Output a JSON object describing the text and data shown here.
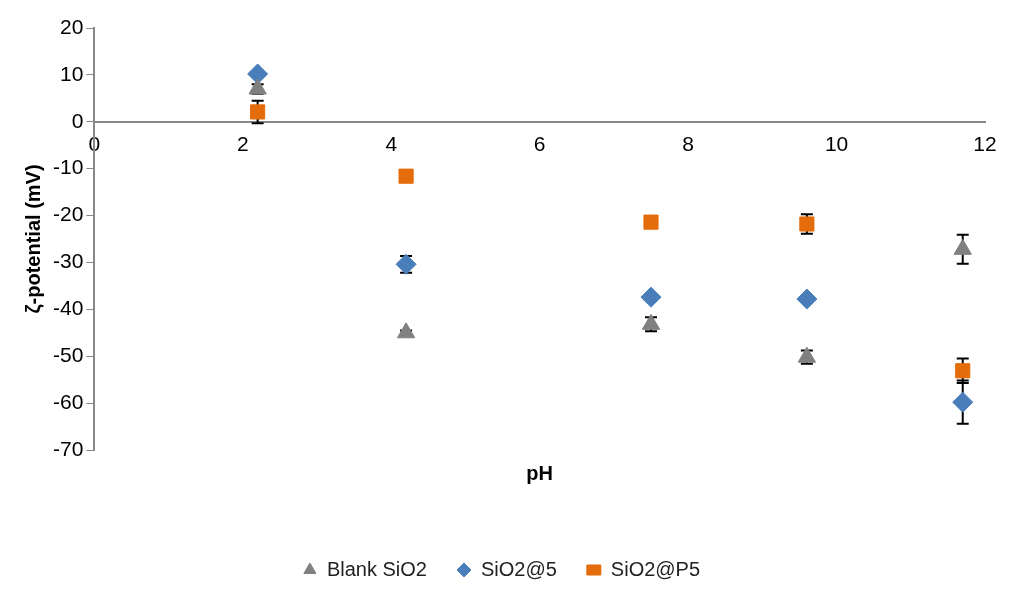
{
  "chart_data": {
    "type": "scatter",
    "xlabel": "pH",
    "ylabel": "ζ-potential (mV)",
    "x": [
      2.2,
      4.2,
      7.5,
      9.6,
      11.7
    ],
    "series": [
      {
        "name": "Blank SiO2",
        "color": "#808080",
        "marker": "triangle",
        "values": [
          7,
          -45,
          -43.2,
          -50.2,
          -27.2
        ],
        "errors": [
          1,
          0.5,
          1.5,
          1.4,
          3.1
        ]
      },
      {
        "name": "SiO2@5",
        "color": "#4a7ebb",
        "marker": "diamond",
        "values": [
          10.2,
          -30.4,
          -37.4,
          -37.8,
          -59.8
        ],
        "errors": [
          null,
          1.8,
          null,
          null,
          4.6
        ]
      },
      {
        "name": "SiO2@P5",
        "color": "#e46c0a",
        "marker": "square",
        "values": [
          2.1,
          -11.6,
          -21.4,
          -21.8,
          -53.1
        ],
        "errors": [
          2.4,
          null,
          null,
          2.1,
          2.6
        ]
      }
    ],
    "xlim": [
      0,
      12
    ],
    "xticks": [
      0,
      2,
      4,
      6,
      8,
      10,
      12
    ],
    "ylim": [
      -70,
      20
    ],
    "yticks": [
      -70,
      -60,
      -50,
      -40,
      -30,
      -20,
      -10,
      0,
      10,
      20
    ],
    "grid": false,
    "legend": "bottom"
  }
}
